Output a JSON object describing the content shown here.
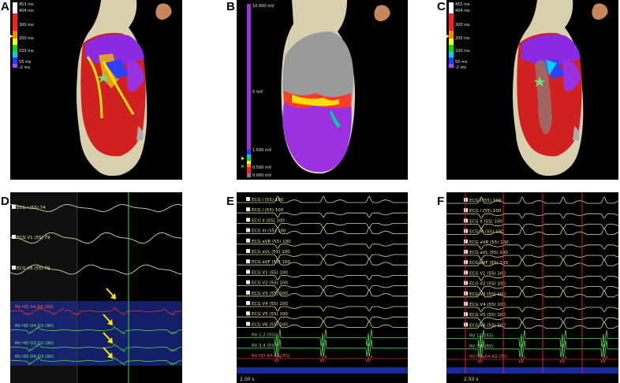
{
  "labels": {
    "a": "A",
    "b": "B",
    "c": "C",
    "d": "D",
    "e": "E",
    "f": "F"
  },
  "lat_scale": {
    "top": "453 ms",
    "row2": "404 ms",
    "row3": "300 ms",
    "row4": "200 ms",
    "row5": "100 ms",
    "row6": "55 ms",
    "bottom": "-2 ms"
  },
  "volt_scale": {
    "top": "10.000 mV",
    "mid": "5 mV",
    "low1": "1.500 mV",
    "low2": "0.500 mV",
    "bottom": "0.000 mV"
  },
  "panel_d": {
    "channels": [
      {
        "label": "ECG I (55)  74"
      },
      {
        "label": "ECG V1 (55)  79"
      },
      {
        "label": "ECG V6 (55)  79"
      },
      {
        "label": "RV HD A4,A3 (90)"
      },
      {
        "label": "RV HD D4,D3 (90)"
      },
      {
        "label": "RV HD D3,D2 (90)"
      },
      {
        "label": "RV HD D4,D3 (90)"
      }
    ]
  },
  "panel_e": {
    "channels": [
      "ECG I (55)  100",
      "ECG I (55)  100",
      "ECG II (55)  100",
      "ECG III (55)  100",
      "ECG aVR (55)  100",
      "ECG aVL (55)  100",
      "ECG aVF (55)  100",
      "ECG V1 (55)  100",
      "ECG V2 (55)  100",
      "ECG V3 (55)  100",
      "ECG V4 (55)  100",
      "ECG V5 (55)  100",
      "ECG V6 (55)  100",
      "RV 1,2 (55)",
      "RV 3,4 (55)",
      "RV HD A4,A3 (55)"
    ],
    "sweep": "2.00 s"
  },
  "panel_f": {
    "channels": [
      "ECG I (55)  100",
      "ECG I (55)  100",
      "ECG II (55)  100",
      "ECG III (55)  100",
      "ECG aVR (55)  100",
      "ECG aVL (55)  100",
      "ECG aVF (55)  100",
      "ECG V1 (55)  100",
      "ECG V2 (55)  100",
      "ECG V3 (55)  100",
      "ECG V4 (55)  100",
      "ECG V5 (55)  100",
      "ECG V6 (55)  100",
      "RV 1,2 (55)",
      "RV 3,4 (55)",
      "RV HD A4,A3 (55)"
    ],
    "sweep": "2.50 s"
  },
  "colors": {
    "ecg": "#d8d890",
    "egm_green": "#4cd84c",
    "egm_red": "#e03030",
    "cursor_green": "#3fe03f",
    "cursor_red": "#e02020",
    "arrow": "#ffe600"
  }
}
